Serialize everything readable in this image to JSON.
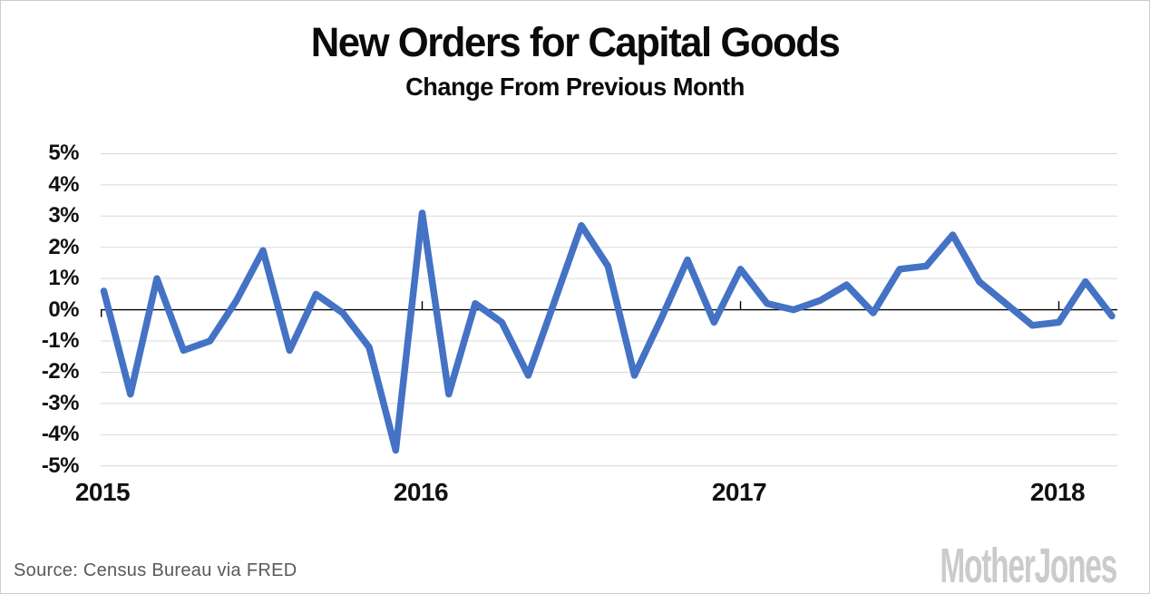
{
  "header": {
    "title": "New Orders for Capital Goods",
    "subtitle": "Change From Previous Month"
  },
  "footer": {
    "source": "Source: Census Bureau via FRED",
    "branding": "MotherJones"
  },
  "colors": {
    "line": "#4472c4",
    "grid": "#d9d9d9",
    "axis": "#000000",
    "label": "#111111",
    "source_text": "#595959",
    "logo": "#cbcbcb",
    "background": "#ffffff",
    "border": "#cccccc"
  },
  "chart_data": {
    "type": "line",
    "title": "New Orders for Capital Goods",
    "subtitle": "Change From Previous Month",
    "series_name": "New orders for capital goods, % change from previous month",
    "unit": "percent",
    "grid": true,
    "legend": "none",
    "ylim": [
      -5,
      5
    ],
    "x_ticks": [
      "2015",
      "2016",
      "2017",
      "2018"
    ],
    "y_ticks": [
      "5%",
      "4%",
      "3%",
      "2%",
      "1%",
      "0%",
      "-1%",
      "-2%",
      "-3%",
      "-4%",
      "-5%"
    ],
    "y_tick_values": [
      5,
      4,
      3,
      2,
      1,
      0,
      -1,
      -2,
      -3,
      -4,
      -5
    ],
    "x": [
      "2015-01",
      "2015-02",
      "2015-03",
      "2015-04",
      "2015-05",
      "2015-06",
      "2015-07",
      "2015-08",
      "2015-09",
      "2015-10",
      "2015-11",
      "2015-12",
      "2016-01",
      "2016-02",
      "2016-03",
      "2016-04",
      "2016-05",
      "2016-06",
      "2016-07",
      "2016-08",
      "2016-09",
      "2016-10",
      "2016-11",
      "2016-12",
      "2017-01",
      "2017-02",
      "2017-03",
      "2017-04",
      "2017-05",
      "2017-06",
      "2017-07",
      "2017-08",
      "2017-09",
      "2017-10",
      "2017-11",
      "2017-12",
      "2018-01",
      "2018-02",
      "2018-03"
    ],
    "values": [
      0.6,
      -2.7,
      1.0,
      -1.3,
      -1.0,
      0.3,
      1.9,
      -1.3,
      0.5,
      -0.1,
      -1.2,
      -4.5,
      3.1,
      -2.7,
      0.2,
      -0.4,
      -2.1,
      0.3,
      2.7,
      1.4,
      -2.1,
      -0.3,
      1.6,
      -0.4,
      1.3,
      0.2,
      0.0,
      0.3,
      0.8,
      -0.1,
      1.3,
      1.4,
      2.4,
      0.9,
      0.2,
      -0.5,
      -0.4,
      0.9,
      -0.2
    ]
  }
}
